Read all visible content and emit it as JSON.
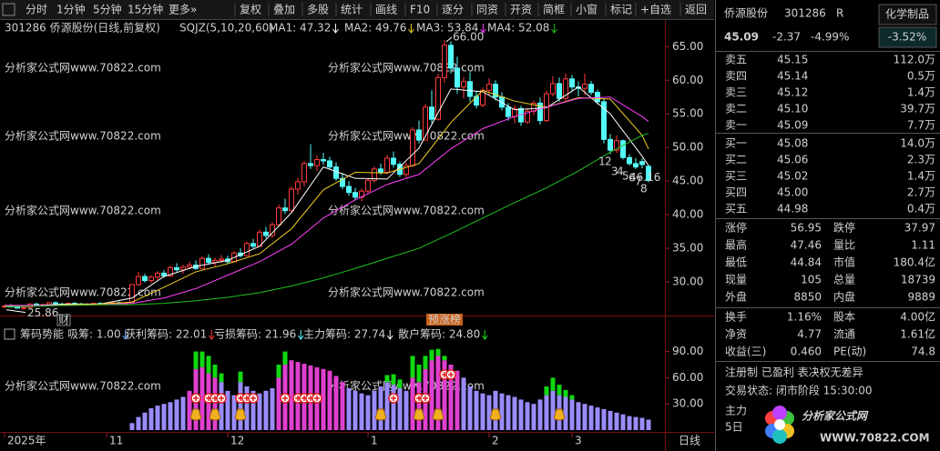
{
  "toolbar": [
    "分时",
    "1分钟",
    "5分钟",
    "15分钟",
    "更多»",
    "复权",
    "叠加",
    "多股",
    "统计",
    "画线",
    "F10",
    "逐分",
    "同资",
    "开资",
    "简框",
    "小窗",
    "标记",
    "+自选",
    "返回"
  ],
  "chart_data": {
    "type": "candlestick",
    "title": "301286 侨源股份(日线,前复权)",
    "indicator": "SQJZ(5,10,20,60)",
    "up_color": "#ff3c3c",
    "down_color": "#54fcfc",
    "ylim": [
      25.2,
      66.8
    ],
    "yticks": [
      {
        "value": 65,
        "label": "65.00"
      },
      {
        "value": 60,
        "label": "60.00"
      },
      {
        "value": 55,
        "label": "55.00"
      },
      {
        "value": 50,
        "label": "50.00"
      },
      {
        "value": 45,
        "label": "45.00"
      },
      {
        "value": 40,
        "label": "40.00"
      },
      {
        "value": 35,
        "label": "35.00"
      },
      {
        "value": 30,
        "label": "30.00"
      }
    ],
    "xticks": [
      {
        "value": 0,
        "label": "2025年"
      },
      {
        "value": 16,
        "label": "11"
      },
      {
        "value": 35,
        "label": "12"
      },
      {
        "value": 57,
        "label": "1"
      },
      {
        "value": 76,
        "label": "2"
      },
      {
        "value": 89,
        "label": "3"
      }
    ],
    "x_end_label": "日线",
    "candles": [
      [
        26.3,
        26.6,
        26.1,
        26.4
      ],
      [
        26.4,
        26.7,
        26.2,
        26.3
      ],
      [
        26.3,
        26.5,
        26.0,
        26.1
      ],
      [
        26.1,
        26.3,
        25.86,
        26.2
      ],
      [
        26.2,
        26.8,
        26.1,
        26.7
      ],
      [
        26.7,
        26.9,
        26.4,
        26.5
      ],
      [
        26.5,
        26.8,
        26.3,
        26.6
      ],
      [
        26.6,
        27.0,
        26.5,
        26.9
      ],
      [
        26.9,
        27.1,
        26.6,
        26.7
      ],
      [
        26.7,
        26.9,
        26.4,
        26.6
      ],
      [
        26.6,
        26.9,
        26.5,
        26.8
      ],
      [
        26.8,
        27.0,
        26.6,
        26.7
      ],
      [
        26.7,
        26.9,
        26.5,
        26.6
      ],
      [
        26.6,
        26.8,
        26.4,
        26.7
      ],
      [
        26.7,
        26.9,
        26.6,
        26.8
      ],
      [
        26.8,
        27.0,
        26.6,
        26.7
      ],
      [
        26.7,
        26.9,
        26.5,
        26.8
      ],
      [
        26.8,
        27.0,
        26.6,
        26.9
      ],
      [
        26.9,
        27.1,
        26.7,
        26.8
      ],
      [
        26.8,
        27.0,
        26.6,
        26.9
      ],
      [
        27.0,
        29.6,
        26.9,
        29.6
      ],
      [
        29.6,
        31.5,
        29.4,
        30.8
      ],
      [
        30.8,
        31.2,
        29.9,
        30.2
      ],
      [
        30.2,
        31.0,
        29.8,
        30.7
      ],
      [
        30.7,
        31.6,
        30.3,
        31.3
      ],
      [
        31.3,
        31.8,
        30.6,
        30.9
      ],
      [
        30.9,
        32.4,
        30.7,
        32.1
      ],
      [
        32.1,
        32.8,
        31.5,
        31.8
      ],
      [
        31.8,
        32.5,
        31.2,
        32.2
      ],
      [
        32.2,
        33.0,
        31.9,
        32.5
      ],
      [
        32.5,
        33.2,
        31.8,
        32.0
      ],
      [
        32.0,
        33.8,
        31.9,
        33.5
      ],
      [
        33.5,
        34.1,
        32.6,
        32.9
      ],
      [
        32.9,
        33.6,
        32.3,
        33.2
      ],
      [
        33.2,
        34.0,
        32.8,
        33.4
      ],
      [
        33.4,
        33.9,
        32.7,
        33.0
      ],
      [
        33.0,
        34.6,
        32.9,
        34.3
      ],
      [
        34.3,
        35.0,
        33.6,
        33.9
      ],
      [
        33.9,
        36.0,
        33.8,
        35.7
      ],
      [
        35.7,
        36.4,
        35.0,
        35.3
      ],
      [
        35.3,
        37.8,
        35.2,
        37.4
      ],
      [
        37.4,
        38.2,
        36.5,
        36.9
      ],
      [
        36.9,
        38.9,
        36.6,
        38.5
      ],
      [
        38.5,
        41.5,
        38.3,
        41.0
      ],
      [
        41.0,
        42.4,
        40.1,
        40.6
      ],
      [
        40.6,
        44.2,
        40.4,
        43.8
      ],
      [
        43.8,
        45.5,
        43.0,
        44.9
      ],
      [
        44.9,
        48.0,
        44.2,
        47.6
      ],
      [
        47.6,
        50.5,
        46.8,
        47.3
      ],
      [
        47.3,
        48.8,
        46.5,
        48.2
      ],
      [
        48.2,
        49.2,
        47.4,
        48.0
      ],
      [
        48.0,
        48.6,
        46.8,
        47.1
      ],
      [
        47.1,
        47.8,
        45.0,
        45.4
      ],
      [
        45.4,
        46.2,
        43.8,
        44.2
      ],
      [
        44.2,
        45.0,
        42.8,
        43.3
      ],
      [
        43.3,
        44.0,
        42.1,
        42.6
      ],
      [
        42.6,
        43.9,
        42.0,
        43.5
      ],
      [
        43.5,
        45.4,
        43.2,
        45.1
      ],
      [
        45.1,
        47.2,
        44.8,
        46.8
      ],
      [
        46.8,
        47.6,
        45.9,
        46.3
      ],
      [
        46.3,
        48.9,
        46.0,
        48.4
      ],
      [
        48.4,
        49.4,
        47.0,
        47.5
      ],
      [
        47.5,
        47.9,
        45.6,
        46.0
      ],
      [
        46.0,
        47.8,
        45.5,
        47.3
      ],
      [
        47.3,
        53.0,
        47.1,
        52.6
      ],
      [
        52.6,
        54.0,
        50.6,
        51.1
      ],
      [
        51.1,
        56.5,
        51.0,
        56.0
      ],
      [
        56.0,
        58.5,
        53.6,
        54.2
      ],
      [
        54.2,
        61.0,
        54.0,
        60.4
      ],
      [
        60.4,
        66.0,
        59.6,
        65.2
      ],
      [
        65.2,
        65.8,
        61.0,
        61.8
      ],
      [
        61.8,
        63.5,
        58.0,
        59.0
      ],
      [
        59.0,
        60.5,
        57.3,
        59.8
      ],
      [
        59.8,
        61.2,
        56.8,
        57.6
      ],
      [
        57.6,
        58.4,
        55.8,
        56.3
      ],
      [
        56.3,
        58.9,
        56.0,
        58.5
      ],
      [
        58.5,
        60.3,
        57.8,
        59.4
      ],
      [
        59.4,
        60.0,
        57.0,
        57.5
      ],
      [
        57.5,
        58.2,
        55.5,
        56.0
      ],
      [
        56.0,
        56.6,
        54.0,
        54.6
      ],
      [
        54.6,
        56.3,
        53.6,
        55.8
      ],
      [
        55.8,
        56.2,
        53.2,
        53.8
      ],
      [
        53.8,
        55.9,
        53.5,
        55.4
      ],
      [
        55.4,
        57.0,
        54.8,
        56.6
      ],
      [
        56.6,
        57.4,
        53.4,
        54.0
      ],
      [
        54.0,
        58.5,
        53.8,
        58.0
      ],
      [
        58.0,
        60.6,
        57.6,
        59.5
      ],
      [
        59.5,
        60.4,
        56.8,
        57.3
      ],
      [
        57.3,
        61.0,
        57.0,
        60.2
      ],
      [
        60.2,
        60.8,
        58.5,
        59.0
      ],
      [
        59.0,
        59.8,
        57.6,
        58.8
      ],
      [
        58.8,
        61.0,
        57.8,
        59.4
      ],
      [
        59.4,
        59.9,
        57.8,
        58.2
      ],
      [
        58.2,
        58.6,
        56.4,
        56.8
      ],
      [
        56.8,
        57.2,
        50.6,
        51.2
      ],
      [
        51.2,
        52.0,
        49.0,
        49.6
      ],
      [
        49.6,
        51.8,
        49.2,
        51.0
      ],
      [
        51.0,
        51.2,
        48.2,
        48.5
      ],
      [
        48.5,
        49.0,
        47.3,
        47.6
      ],
      [
        47.6,
        48.4,
        46.8,
        47.1
      ],
      [
        47.9,
        48.4,
        46.9,
        47.46
      ],
      [
        47.2,
        47.46,
        44.84,
        45.09
      ]
    ],
    "ma": {
      "x": [
        0,
        5,
        10,
        15,
        20,
        25,
        30,
        35,
        40,
        45,
        50,
        55,
        60,
        65,
        70,
        75,
        80,
        85,
        90,
        95,
        100,
        101
      ],
      "series": [
        {
          "name": "MA1: 47.32",
          "color": "#ffffff",
          "values": [
            26.4,
            26.5,
            26.7,
            26.7,
            27.6,
            30.8,
            32.3,
            33.2,
            35.3,
            40.3,
            47.1,
            45.4,
            45.3,
            49.9,
            58.7,
            58.3,
            55.6,
            55.9,
            59.0,
            55.0,
            48.7,
            47.32
          ]
        },
        {
          "name": "MA2: 49.76",
          "color": "#f0d020",
          "values": [
            26.4,
            26.4,
            26.6,
            26.7,
            27.0,
            29.2,
            31.5,
            32.7,
            34.2,
            37.9,
            43.7,
            46.3,
            46.2,
            47.6,
            53.7,
            58.5,
            56.9,
            56.0,
            57.4,
            57.2,
            51.8,
            49.76
          ]
        },
        {
          "name": "MA3: 53.84",
          "color": "#ff40ff",
          "values": [
            26.5,
            26.5,
            26.5,
            26.6,
            26.8,
            27.6,
            29.0,
            31.0,
            33.0,
            35.6,
            39.5,
            42.2,
            44.5,
            46.0,
            49.8,
            52.8,
            54.6,
            56.0,
            57.3,
            57.5,
            54.6,
            53.84
          ]
        },
        {
          "name": "MA4: 52.08",
          "color": "#20c020",
          "values": [
            26.3,
            26.4,
            26.5,
            26.6,
            26.6,
            26.8,
            27.2,
            27.7,
            28.4,
            29.4,
            30.6,
            32.0,
            33.5,
            35.0,
            37.2,
            39.5,
            41.8,
            44.0,
            46.5,
            49.3,
            51.8,
            52.08
          ]
        }
      ]
    },
    "annotations": [
      "66.00",
      "25.86",
      "46.16"
    ],
    "wave_labels": [
      "1",
      "2",
      "3",
      "4",
      "5",
      "6",
      "7",
      "8"
    ],
    "event_marks": [
      "财",
      "预涨榜"
    ],
    "watermark": "分析家公式网www.70822.com",
    "lower": {
      "title": "筹码势能",
      "legend": [
        {
          "text": "吸筹: 1.00",
          "color": "#6aa0ff"
        },
        {
          "text": "获利筹码: 22.01",
          "color": "#ff3c3c"
        },
        {
          "text": "亏损筹码: 21.96",
          "color": "#54fcfc"
        },
        {
          "text": "主力筹码: 27.74",
          "color": "#ffffff"
        },
        {
          "text": "散户筹码: 24.80",
          "color": "#20e020"
        }
      ],
      "ylim": [
        0,
        100
      ],
      "yticks": [
        {
          "value": 90,
          "label": "90.00"
        },
        {
          "value": 60,
          "label": "60.00"
        },
        {
          "value": 30,
          "label": "30.00"
        }
      ],
      "bar_color": "#9a8cff",
      "hot_color": "#e040d0",
      "top_color": "#10d810",
      "bars": [
        null,
        null,
        null,
        null,
        null,
        null,
        null,
        null,
        null,
        null,
        null,
        null,
        null,
        null,
        null,
        null,
        null,
        null,
        null,
        null,
        8,
        15,
        20,
        25,
        28,
        30,
        32,
        35,
        38,
        45,
        70,
        72,
        65,
        60,
        55,
        45,
        40,
        55,
        50,
        45,
        42,
        45,
        48,
        60,
        75,
        80,
        78,
        76,
        74,
        72,
        70,
        68,
        62,
        55,
        48,
        45,
        42,
        40,
        45,
        50,
        55,
        52,
        48,
        45,
        60,
        55,
        70,
        80,
        85,
        80,
        75,
        68,
        60,
        50,
        45,
        42,
        40,
        45,
        42,
        40,
        38,
        35,
        32,
        30,
        35,
        40,
        45,
        40,
        38,
        35,
        32,
        30,
        28,
        26,
        24,
        22,
        20,
        18,
        16,
        15,
        14,
        12
      ],
      "hot_bars": [
        29,
        30,
        31,
        32,
        33,
        43,
        44,
        45,
        46,
        47,
        48,
        49,
        50,
        51,
        52,
        53,
        64,
        65,
        66,
        67,
        68,
        69,
        70,
        71
      ],
      "tops": [
        null,
        null,
        null,
        null,
        null,
        null,
        null,
        null,
        null,
        null,
        null,
        null,
        null,
        null,
        null,
        null,
        null,
        null,
        null,
        null,
        null,
        null,
        null,
        null,
        null,
        null,
        null,
        null,
        null,
        null,
        20,
        18,
        20,
        15,
        10,
        null,
        null,
        12,
        null,
        null,
        null,
        null,
        null,
        15,
        15,
        null,
        null,
        null,
        null,
        null,
        null,
        null,
        null,
        null,
        null,
        null,
        null,
        null,
        null,
        null,
        8,
        12,
        10,
        null,
        25,
        20,
        15,
        12,
        8,
        5,
        null,
        null,
        null,
        null,
        null,
        null,
        null,
        null,
        null,
        null,
        null,
        null,
        null,
        null,
        null,
        10,
        15,
        12,
        8,
        5,
        null,
        null,
        null,
        null,
        null,
        null,
        null,
        null,
        null,
        null,
        null,
        null
      ],
      "plus_signals": [
        30,
        32,
        33,
        34,
        37,
        38,
        39,
        44,
        46,
        47,
        48,
        49,
        61,
        65,
        66,
        69,
        70
      ],
      "bag_signals": [
        30,
        33,
        37,
        59,
        65,
        68,
        77,
        87
      ]
    }
  },
  "quote": {
    "name": "侨源股份",
    "code": "301286",
    "flag": "R",
    "industry": "化学制品",
    "price": "45.09",
    "change": "-2.37",
    "pct": "-4.99%",
    "industry_pct": "-3.52%"
  },
  "order_book": {
    "asks": [
      [
        "卖五",
        "45.15",
        "112.0万"
      ],
      [
        "卖四",
        "45.14",
        "0.5万"
      ],
      [
        "卖三",
        "45.12",
        "1.4万"
      ],
      [
        "卖二",
        "45.10",
        "39.7万"
      ],
      [
        "卖一",
        "45.09",
        "7.7万"
      ]
    ],
    "bids": [
      [
        "买一",
        "45.08",
        "14.0万"
      ],
      [
        "买二",
        "45.06",
        "2.3万"
      ],
      [
        "买三",
        "45.02",
        "1.4万"
      ],
      [
        "买四",
        "45.00",
        "2.7万"
      ],
      [
        "买五",
        "44.98",
        "0.4万"
      ]
    ]
  },
  "stats": [
    [
      "涨停",
      "56.95",
      "跌停",
      "37.97"
    ],
    [
      "最高",
      "47.46",
      "量比",
      "1.11"
    ],
    [
      "最低",
      "44.84",
      "市值",
      "180.4亿"
    ],
    [
      "现量",
      "105",
      "总量",
      "18739"
    ],
    [
      "外盘",
      "8850",
      "内盘",
      "9889"
    ]
  ],
  "stats2": [
    [
      "换手",
      "1.16%",
      "股本",
      "4.00亿"
    ],
    [
      "净资",
      "4.77",
      "流通",
      "1.61亿"
    ],
    [
      "收益(三)",
      "0.460",
      "PE(动)",
      "74.8"
    ]
  ],
  "tags": [
    "注册制 已盈利 表决权无差异",
    "交易状态: 闭市阶段 15:30:00",
    "主力",
    "5日"
  ],
  "logo": {
    "name": "分析家公式网",
    "url": "WWW.70822.COM"
  }
}
